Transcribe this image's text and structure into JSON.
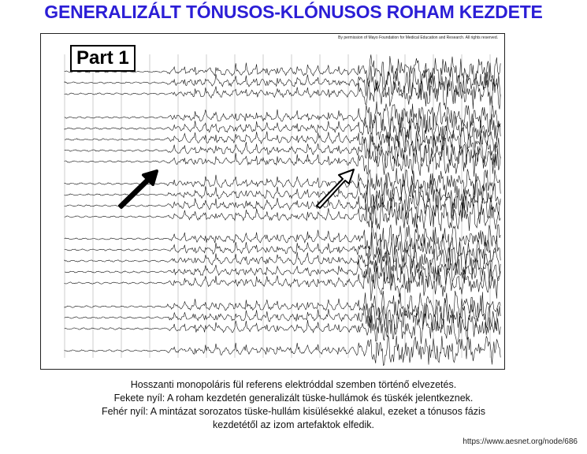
{
  "title": "GENERALIZÁLT TÓNUSOS-KLÓNUSOS ROHAM KEZDETE",
  "figure": {
    "part_label": "Part 1",
    "permission_note": "By permission of Mayo Foundation for Medical Education and Research. All rights reserved.",
    "arrows": [
      {
        "name": "black-arrow",
        "style": "filled",
        "color": "#000000"
      },
      {
        "name": "white-arrow",
        "style": "hollow",
        "color": "#ffffff"
      }
    ]
  },
  "caption": {
    "line1": "Hosszanti monopoláris fül referens elektróddal szemben történő elvezetés.",
    "line2": "Fekete nyíl: A roham kezdetén generalizált tüske-hullámok és tüskék jelentkeznek.",
    "line3": "Fehér nyíl: A mintázat sorozatos tüske-hullám kisülésekké alakul, ezeket a tónusos fázis",
    "line4": "kezdetétől az izom artefaktok elfedik."
  },
  "source_url": "https://www.aesnet.org/node/686"
}
